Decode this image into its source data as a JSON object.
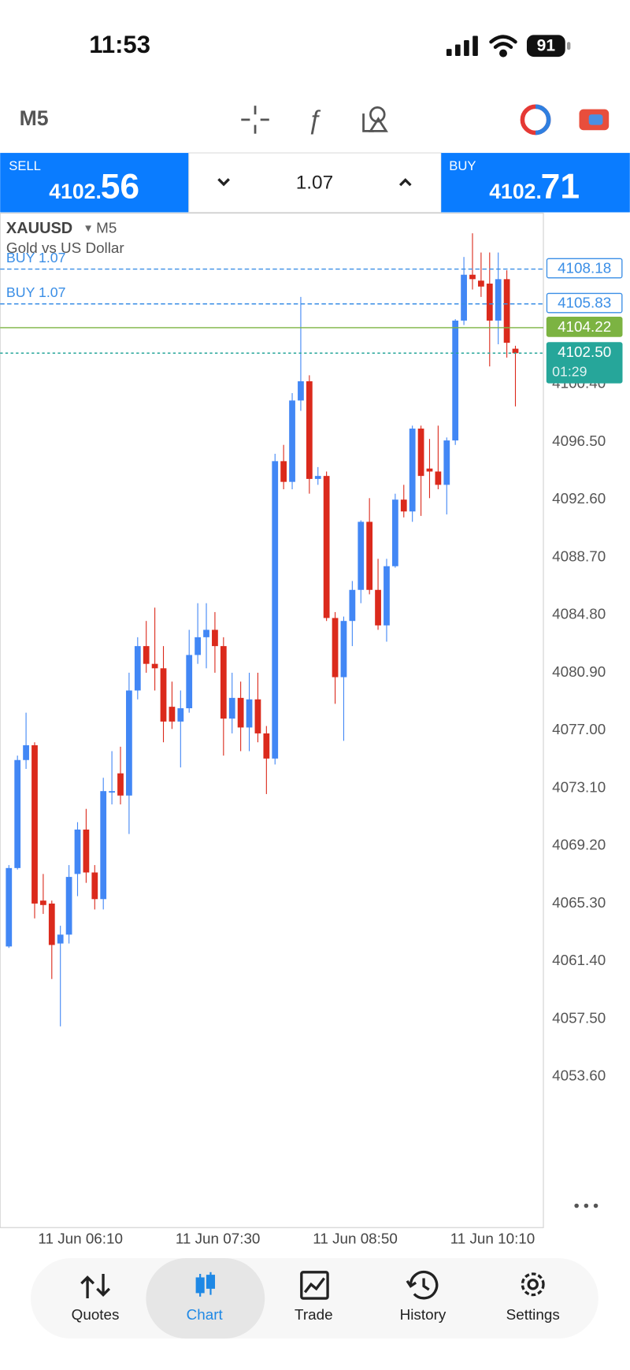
{
  "status_bar": {
    "time": "11:53",
    "battery": "91"
  },
  "toolbar": {
    "timeframe": "M5"
  },
  "trade_panel": {
    "sell": {
      "label": "SELL",
      "price_small": "4102.",
      "price_big": "56"
    },
    "volume": "1.07",
    "buy": {
      "label": "BUY",
      "price_small": "4102.",
      "price_big": "71"
    }
  },
  "chart_header": {
    "symbol": "XAUUSD",
    "timeframe": "M5",
    "description": "Gold vs US Dollar"
  },
  "chart_data": {
    "type": "candlestick",
    "up_color": "#4287f5",
    "down_color": "#db2a1c",
    "categories": [
      null,
      null,
      null,
      "11 Jun 06:10",
      null,
      null,
      null,
      null,
      null,
      null,
      null,
      null,
      null,
      null,
      null,
      null,
      null,
      null,
      null,
      "11 Jun 07:30",
      null,
      null,
      null,
      null,
      null,
      null,
      null,
      null,
      null,
      null,
      null,
      null,
      null,
      null,
      null,
      "11 Jun 08:50",
      null,
      null,
      null,
      null,
      null,
      null,
      null,
      null,
      null,
      null,
      null,
      null,
      null,
      null,
      null,
      "11 Jun 10:10",
      null,
      null,
      null,
      null,
      null,
      null,
      null,
      null
    ],
    "open": [
      4062.4,
      4067.7,
      4075.0,
      4076.0,
      4065.5,
      4065.3,
      4062.6,
      4063.2,
      4067.3,
      4070.3,
      4067.4,
      4065.6,
      4072.8,
      4074.1,
      4072.6,
      4079.7,
      4082.7,
      4081.5,
      4081.2,
      4078.6,
      4077.6,
      4078.5,
      4082.1,
      4083.3,
      4083.8,
      4082.7,
      4077.8,
      4079.2,
      4077.2,
      4079.1,
      4076.8,
      4075.1,
      4095.2,
      4093.8,
      4099.3,
      4100.6,
      4094.0,
      4094.2,
      4084.6,
      4080.6,
      4084.4,
      4086.5,
      4091.1,
      4086.5,
      4084.1,
      4088.1,
      4092.6,
      4091.8,
      4097.4,
      4094.7,
      4094.5,
      4093.6,
      4096.6,
      4104.7,
      4107.8,
      4107.4,
      4107.2,
      4104.7,
      4107.5,
      4102.8
    ],
    "high": [
      4067.9,
      4075.3,
      4078.2,
      4076.2,
      4067.3,
      4065.5,
      4063.8,
      4067.9,
      4070.8,
      4071.7,
      4067.9,
      4073.8,
      4075.6,
      4075.9,
      4080.9,
      4083.3,
      4084.4,
      4085.3,
      4082.7,
      4080.3,
      4079.7,
      4083.8,
      4085.6,
      4085.6,
      4085.0,
      4083.3,
      4080.9,
      4080.3,
      4080.9,
      4080.9,
      4077.3,
      4095.7,
      4096.3,
      4099.8,
      4106.3,
      4101.0,
      4094.8,
      4094.5,
      4085.0,
      4084.7,
      4087.1,
      4091.2,
      4092.7,
      4088.6,
      4088.6,
      4093.0,
      4093.6,
      4097.6,
      4097.6,
      4096.7,
      4097.6,
      4096.8,
      4104.8,
      4109.0,
      4110.6,
      4109.3,
      4109.3,
      4109.3,
      4108.1,
      4103.0
    ],
    "low": [
      4062.3,
      4067.6,
      4074.4,
      4064.3,
      4064.6,
      4060.2,
      4057.0,
      4062.6,
      4065.8,
      4066.7,
      4064.9,
      4064.9,
      4072.0,
      4072.0,
      4070.0,
      4079.1,
      4080.9,
      4079.7,
      4076.2,
      4077.1,
      4074.5,
      4078.2,
      4081.5,
      4081.2,
      4080.9,
      4075.3,
      4076.8,
      4075.6,
      4075.6,
      4076.2,
      4072.7,
      4074.7,
      4093.3,
      4093.3,
      4098.6,
      4093.0,
      4093.6,
      4084.4,
      4078.8,
      4076.3,
      4082.7,
      4085.6,
      4086.2,
      4083.8,
      4083.0,
      4088.0,
      4091.4,
      4091.1,
      4091.5,
      4092.7,
      4093.3,
      4091.6,
      4096.3,
      4104.4,
      4106.8,
      4106.3,
      4101.6,
      4103.1,
      4102.2,
      4098.9
    ],
    "close": [
      4067.7,
      4075.0,
      4076.0,
      4065.3,
      4065.2,
      4062.5,
      4063.2,
      4067.1,
      4070.3,
      4067.4,
      4065.6,
      4072.9,
      4072.9,
      4072.6,
      4079.7,
      4082.7,
      4081.5,
      4081.2,
      4077.6,
      4077.6,
      4078.5,
      4082.1,
      4083.3,
      4083.8,
      4082.7,
      4077.8,
      4079.2,
      4077.2,
      4079.1,
      4076.8,
      4075.1,
      4095.2,
      4093.8,
      4099.3,
      4100.6,
      4094.0,
      4094.2,
      4084.6,
      4080.6,
      4084.4,
      4086.5,
      4091.1,
      4086.5,
      4084.1,
      4088.1,
      4092.6,
      4091.8,
      4097.4,
      4094.2,
      4094.5,
      4093.6,
      4096.6,
      4104.7,
      4107.8,
      4107.5,
      4107.0,
      4104.7,
      4107.5,
      4103.2,
      4102.5
    ],
    "ylim": [
      4043.4,
      4111.9
    ],
    "yticks": [
      {
        "value": 4053.6,
        "label": "4053.60"
      },
      {
        "value": 4057.5,
        "label": "4057.50"
      },
      {
        "value": 4061.4,
        "label": "4061.40"
      },
      {
        "value": 4065.3,
        "label": "4065.30"
      },
      {
        "value": 4069.2,
        "label": "4069.20"
      },
      {
        "value": 4073.1,
        "label": "4073.10"
      },
      {
        "value": 4077,
        "label": "4077.00"
      },
      {
        "value": 4080.9,
        "label": "4080.90"
      },
      {
        "value": 4084.8,
        "label": "4084.80"
      },
      {
        "value": 4088.7,
        "label": "4088.70"
      },
      {
        "value": 4092.6,
        "label": "4092.60"
      },
      {
        "value": 4096.5,
        "label": "4096.50"
      },
      {
        "value": 4100.4,
        "label": "4100.40"
      }
    ],
    "price_lines": [
      {
        "value": 4108.18,
        "label": "4108.18",
        "order": "BUY 1.07",
        "color": "#3a8ee6",
        "style": "dashed",
        "tag": "outline"
      },
      {
        "value": 4105.83,
        "label": "4105.83",
        "order": "BUY 1.07",
        "color": "#3a8ee6",
        "style": "dashed",
        "tag": "outline"
      },
      {
        "value": 4104.22,
        "label": "4104.22",
        "color": "#7cb342",
        "style": "solid",
        "tag": "filled"
      },
      {
        "value": 4102.5,
        "label": "4102.50",
        "timer": "01:29",
        "color": "#26a69a",
        "style": "dotted",
        "tag": "filled"
      }
    ]
  },
  "nav": {
    "items": [
      "Quotes",
      "Chart",
      "Trade",
      "History",
      "Settings"
    ]
  }
}
